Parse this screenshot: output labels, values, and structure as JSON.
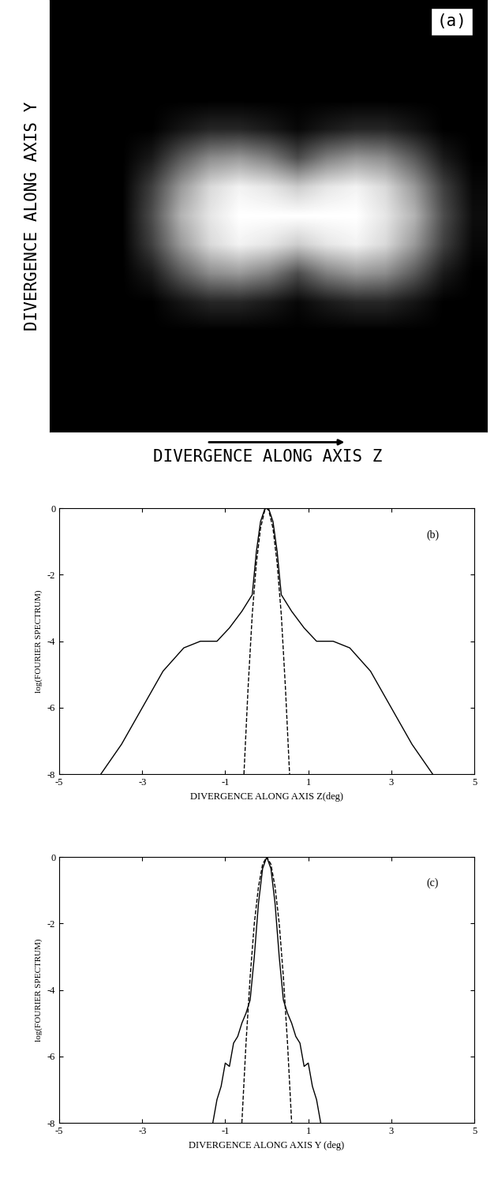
{
  "chart_data": [
    {
      "type": "heatmap",
      "panel_label": "(a)",
      "x_label": "DIVERGENCE ALONG AXIS Z",
      "y_label": "DIVERGENCE ALONG AXIS Y",
      "tick_labels": false,
      "color_range": [
        0,
        1
      ],
      "cells": [
        [
          0,
          0,
          0,
          0,
          0,
          0,
          0,
          0,
          0,
          0,
          0,
          0,
          0,
          0,
          0
        ],
        [
          0,
          0,
          0,
          0,
          0,
          0,
          0,
          0,
          0,
          0,
          0,
          0,
          0,
          0,
          0
        ],
        [
          0,
          0,
          0,
          0,
          0,
          0,
          0,
          0,
          0,
          0,
          0,
          0,
          0,
          0,
          0
        ],
        [
          0,
          0,
          0,
          0,
          0,
          0,
          0,
          0,
          0,
          0,
          0,
          0,
          0,
          0,
          0
        ],
        [
          0,
          0,
          0,
          0,
          0.08,
          0.15,
          0.15,
          0.1,
          0.03,
          0.1,
          0.15,
          0.15,
          0.08,
          0,
          0
        ],
        [
          0,
          0,
          0,
          0.1,
          0.35,
          0.55,
          0.6,
          0.5,
          0.3,
          0.5,
          0.6,
          0.55,
          0.35,
          0.1,
          0
        ],
        [
          0,
          0,
          0,
          0.25,
          0.6,
          0.85,
          0.95,
          0.9,
          0.8,
          0.9,
          0.95,
          0.85,
          0.6,
          0.25,
          0.03
        ],
        [
          0,
          0,
          0,
          0.3,
          0.7,
          0.9,
          1,
          1,
          1,
          1,
          1,
          0.9,
          0.7,
          0.3,
          0.05
        ],
        [
          0,
          0,
          0,
          0.25,
          0.6,
          0.85,
          0.95,
          0.9,
          0.8,
          0.9,
          0.95,
          0.85,
          0.6,
          0.25,
          0.03
        ],
        [
          0,
          0,
          0,
          0.1,
          0.35,
          0.55,
          0.6,
          0.5,
          0.3,
          0.5,
          0.6,
          0.55,
          0.35,
          0.1,
          0
        ],
        [
          0,
          0,
          0,
          0,
          0.08,
          0.15,
          0.15,
          0.1,
          0.03,
          0.1,
          0.15,
          0.15,
          0.08,
          0,
          0
        ],
        [
          0,
          0,
          0,
          0,
          0,
          0,
          0,
          0,
          0,
          0,
          0,
          0,
          0,
          0,
          0
        ],
        [
          0,
          0,
          0,
          0,
          0,
          0,
          0,
          0,
          0,
          0,
          0,
          0,
          0,
          0,
          0
        ],
        [
          0,
          0,
          0,
          0,
          0,
          0,
          0,
          0,
          0,
          0,
          0,
          0,
          0,
          0,
          0
        ],
        [
          0,
          0,
          0,
          0,
          0,
          0,
          0,
          0,
          0,
          0,
          0,
          0,
          0,
          0,
          0
        ]
      ]
    },
    {
      "type": "line",
      "panel_label": "(b)",
      "x_label": "DIVERGENCE ALONG AXIS Z(deg)",
      "y_label": "log(FOURIER SPECTRUM)",
      "xlim": [
        -5,
        5
      ],
      "xticks": [
        -5,
        -3,
        -1,
        1,
        3,
        5
      ],
      "ylim": [
        -8,
        0
      ],
      "yticks": [
        -8,
        -6,
        -4,
        -2,
        0
      ],
      "series": [
        {
          "color": "#000000",
          "line_style": "solid",
          "x": [
            -4.0,
            -3.5,
            -3.0,
            -2.5,
            -2.0,
            -1.6,
            -1.2,
            -0.9,
            -0.6,
            -0.45,
            -0.35,
            -0.25,
            -0.15,
            -0.05,
            0,
            0.05,
            0.15,
            0.25,
            0.35,
            0.45,
            0.6,
            0.9,
            1.2,
            1.6,
            2.0,
            2.5,
            3.0,
            3.5,
            4.0
          ],
          "values": [
            -8,
            -7.1,
            -6.0,
            -4.9,
            -4.2,
            -4.0,
            -4.0,
            -3.6,
            -3.1,
            -2.8,
            -2.6,
            -1.3,
            -0.4,
            -0.03,
            0,
            -0.03,
            -0.4,
            -1.3,
            -2.6,
            -2.8,
            -3.1,
            -3.6,
            -4.0,
            -4.0,
            -4.2,
            -4.9,
            -6.0,
            -7.1,
            -8
          ]
        },
        {
          "color": "#000000",
          "line_style": "dashed",
          "x": [
            -0.55,
            -0.45,
            -0.35,
            -0.25,
            -0.15,
            -0.05,
            0,
            0.05,
            0.15,
            0.25,
            0.35,
            0.45,
            0.55
          ],
          "values": [
            -8,
            -5.4,
            -3.2,
            -1.65,
            -0.6,
            -0.07,
            0,
            -0.07,
            -0.6,
            -1.65,
            -3.2,
            -5.4,
            -8
          ]
        }
      ]
    },
    {
      "type": "line",
      "panel_label": "(c)",
      "x_label": "DIVERGENCE ALONG AXIS Y (deg)",
      "y_label": "log(FOURIER SPECTRUM)",
      "xlim": [
        -5,
        5
      ],
      "xticks": [
        -5,
        -3,
        -1,
        1,
        3,
        5
      ],
      "ylim": [
        -8,
        0
      ],
      "yticks": [
        -8,
        -6,
        -4,
        -2,
        0
      ],
      "series": [
        {
          "color": "#000000",
          "line_style": "solid",
          "x": [
            -1.3,
            -1.2,
            -1.1,
            -1.0,
            -0.9,
            -0.8,
            -0.7,
            -0.6,
            -0.5,
            -0.4,
            -0.3,
            -0.2,
            -0.1,
            0,
            0.1,
            0.2,
            0.3,
            0.4,
            0.5,
            0.6,
            0.7,
            0.8,
            0.9,
            1.0,
            1.1,
            1.2,
            1.3
          ],
          "values": [
            -8,
            -7.3,
            -6.9,
            -6.2,
            -6.3,
            -5.6,
            -5.4,
            -5.0,
            -4.7,
            -4.3,
            -3.0,
            -1.4,
            -0.35,
            0,
            -0.35,
            -1.4,
            -3.0,
            -4.3,
            -4.7,
            -5.0,
            -5.4,
            -5.6,
            -6.3,
            -6.2,
            -6.9,
            -7.3,
            -8
          ]
        },
        {
          "color": "#000000",
          "line_style": "dashed",
          "x": [
            -0.6,
            -0.5,
            -0.4,
            -0.3,
            -0.2,
            -0.1,
            0,
            0.1,
            0.2,
            0.3,
            0.4,
            0.5,
            0.6
          ],
          "values": [
            -8,
            -5.6,
            -3.6,
            -2.0,
            -0.9,
            -0.22,
            0,
            -0.22,
            -0.9,
            -2.0,
            -3.6,
            -5.6,
            -8
          ]
        }
      ]
    }
  ]
}
